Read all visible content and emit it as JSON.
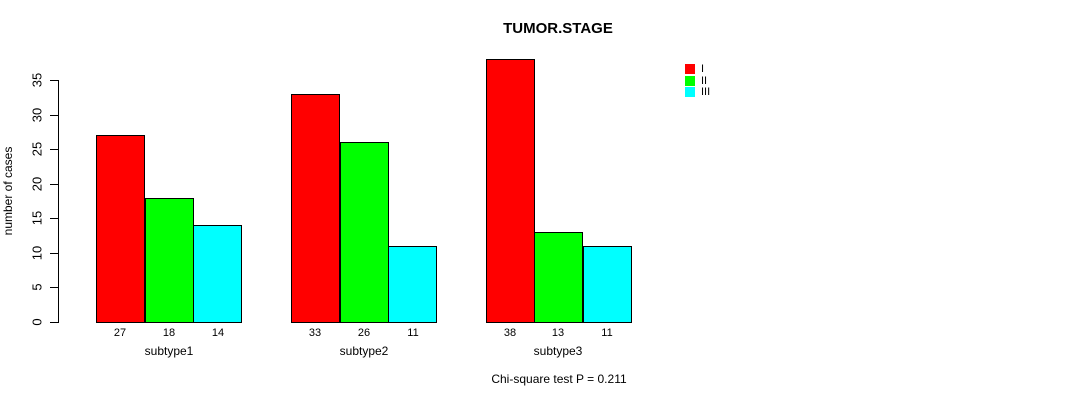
{
  "chart_data": {
    "type": "bar",
    "title": "TUMOR.STAGE",
    "ylabel": "number of cases",
    "xlabel": "",
    "categories": [
      "subtype1",
      "subtype2",
      "subtype3"
    ],
    "series": [
      {
        "name": "I",
        "color": "#ff0000",
        "values": [
          27,
          33,
          38
        ]
      },
      {
        "name": "II",
        "color": "#00ff00",
        "values": [
          18,
          26,
          13
        ]
      },
      {
        "name": "III",
        "color": "#00ffff",
        "values": [
          14,
          11,
          11
        ]
      }
    ],
    "ylim": [
      0,
      35
    ],
    "yticks": [
      0,
      5,
      10,
      15,
      20,
      25,
      30,
      35
    ],
    "grid": false,
    "bar_value_labels_shown": true,
    "legend_position": "top-right",
    "annotation": "Chi-square test P = 0.211",
    "bar_border_color": "#000000",
    "axis_color": "#000000",
    "text_color": "#000000",
    "background_color": "#ffffff"
  }
}
